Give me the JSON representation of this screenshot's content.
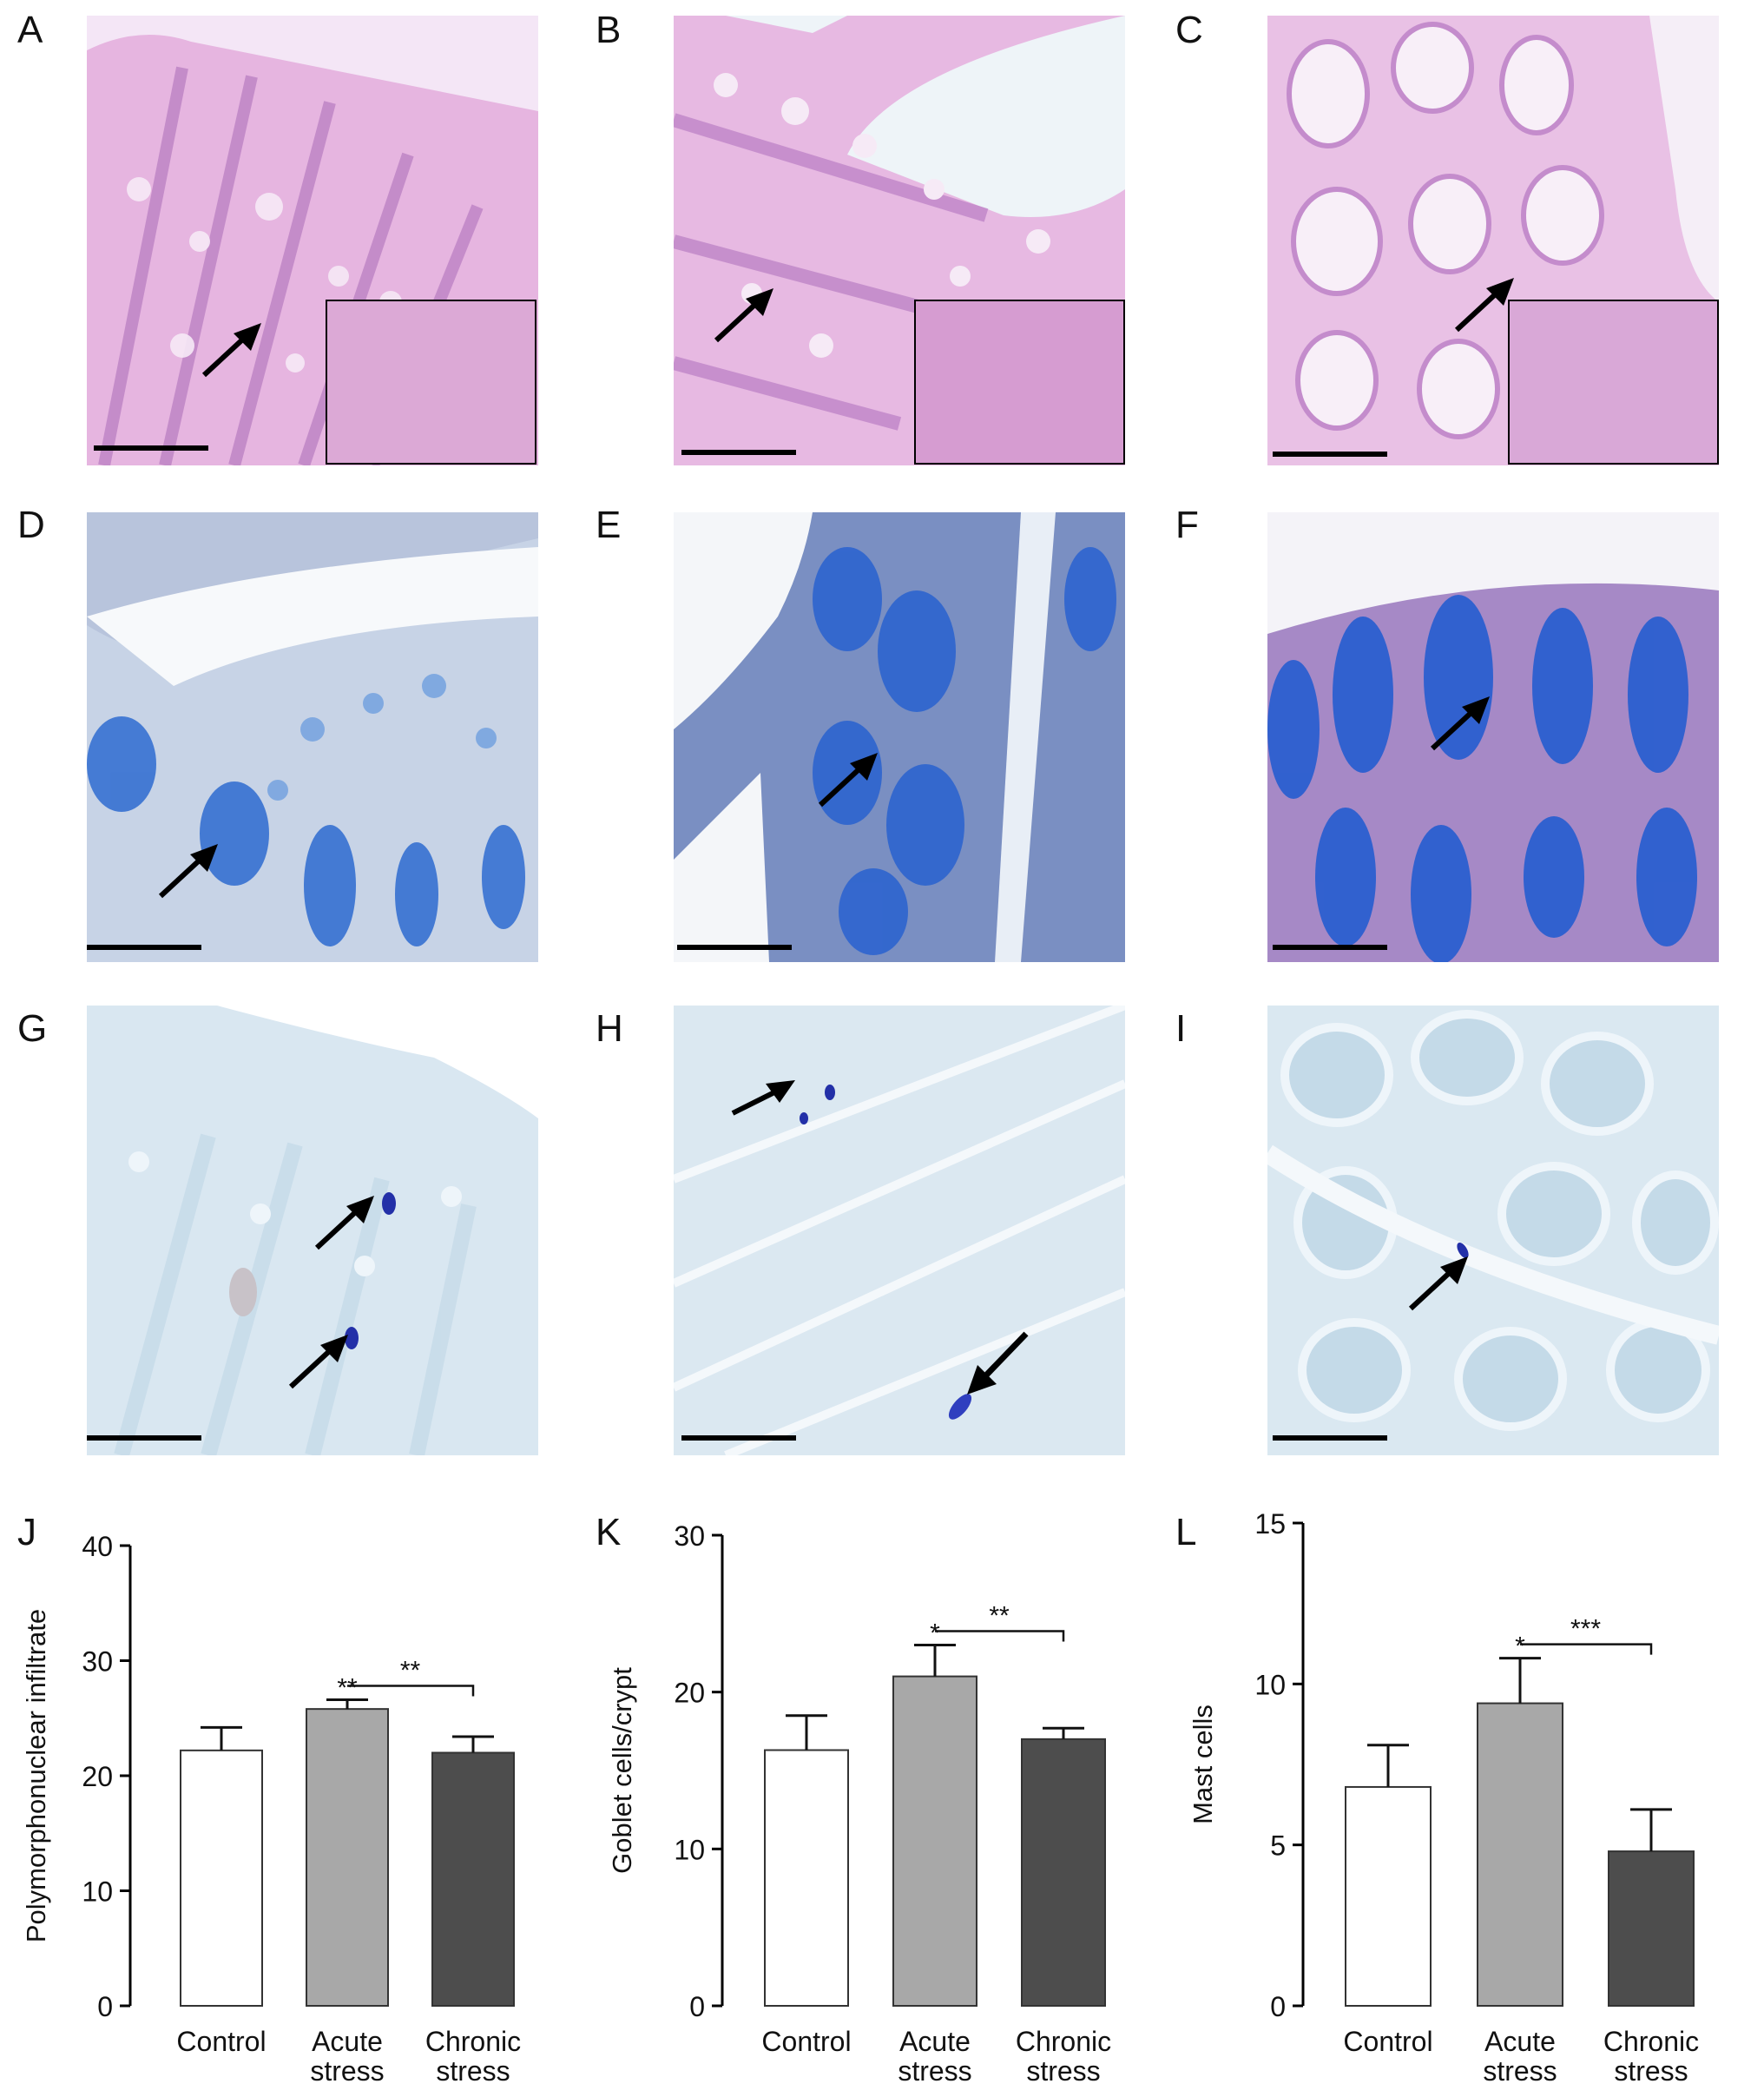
{
  "panels": {
    "a": "A",
    "b": "B",
    "c": "C",
    "d": "D",
    "e": "E",
    "f": "F",
    "g": "G",
    "h": "H",
    "i": "I",
    "j": "J",
    "k": "K",
    "l": "L"
  },
  "stains": {
    "he_background": "#e8b8e2",
    "he_cells": "#c98fcf",
    "pas_background": "#e4eaf3",
    "pas_goblet": "#2f6fce",
    "toluidine_background": "#dfeaf2",
    "mast_cell": "#2330a8"
  },
  "chart_data": [
    {
      "type": "bar",
      "panel": "J",
      "categories": [
        "Control",
        "Acute stress",
        "Chronic stress"
      ],
      "category_lines": [
        [
          "Control"
        ],
        [
          "Acute",
          "stress"
        ],
        [
          "Chronic",
          "stress"
        ]
      ],
      "values": [
        22.2,
        25.8,
        22.0
      ],
      "errors": [
        2.0,
        0.8,
        1.4
      ],
      "bar_colors": [
        "#ffffff",
        "#a8a8a8",
        "#4d4d4d"
      ],
      "ylabel": "Polymorphonuclear infiltrate",
      "ylim": [
        0,
        40
      ],
      "yticks": [
        0,
        10,
        20,
        30,
        40
      ],
      "bar_marks": [
        "",
        "**",
        ""
      ],
      "brackets": [
        {
          "from": 1,
          "to": 2,
          "label": "**"
        }
      ]
    },
    {
      "type": "bar",
      "panel": "K",
      "categories": [
        "Control",
        "Acute stress",
        "Chronic stress"
      ],
      "category_lines": [
        [
          "Control"
        ],
        [
          "Acute",
          "stress"
        ],
        [
          "Chronic",
          "stress"
        ]
      ],
      "values": [
        16.3,
        21.0,
        17.0
      ],
      "errors": [
        2.2,
        2.0,
        0.7
      ],
      "bar_colors": [
        "#ffffff",
        "#a8a8a8",
        "#4d4d4d"
      ],
      "ylabel": "Goblet cells/crypt",
      "ylim": [
        0,
        30
      ],
      "yticks": [
        0,
        10,
        20,
        30
      ],
      "bar_marks": [
        "",
        "*",
        ""
      ],
      "brackets": [
        {
          "from": 1,
          "to": 2,
          "label": "**"
        }
      ]
    },
    {
      "type": "bar",
      "panel": "L",
      "categories": [
        "Control",
        "Acute stress",
        "Chronic stress"
      ],
      "category_lines": [
        [
          "Control"
        ],
        [
          "Acute",
          "stress"
        ],
        [
          "Chronic",
          "stress"
        ]
      ],
      "values": [
        6.8,
        9.4,
        4.8
      ],
      "errors": [
        1.3,
        1.4,
        1.3
      ],
      "bar_colors": [
        "#ffffff",
        "#a8a8a8",
        "#4d4d4d"
      ],
      "ylabel": "Mast cells",
      "ylim": [
        0,
        15
      ],
      "yticks": [
        0,
        5,
        10,
        15
      ],
      "bar_marks": [
        "",
        "*",
        ""
      ],
      "brackets": [
        {
          "from": 1,
          "to": 2,
          "label": "***"
        }
      ]
    }
  ]
}
